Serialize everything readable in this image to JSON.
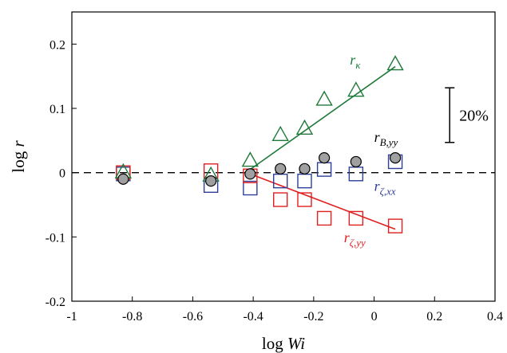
{
  "chart_data": {
    "type": "scatter",
    "xlabel": {
      "prefix": "log ",
      "var": "Wi"
    },
    "ylabel": {
      "prefix": "log ",
      "var": "r"
    },
    "xlim": [
      -1,
      0.4
    ],
    "ylim": [
      -0.2,
      0.25
    ],
    "x_ticks": [
      -1,
      -0.8,
      -0.6,
      -0.4,
      -0.2,
      0,
      0.2,
      0.4
    ],
    "x_tick_labels": [
      "-1",
      "-0.8",
      "-0.6",
      "-0.4",
      "-0.2",
      "0",
      "0.2",
      "0.4"
    ],
    "y_ticks": [
      -0.2,
      -0.1,
      0,
      0.1,
      0.2
    ],
    "y_tick_labels": [
      "-0.2",
      "-0.1",
      "0",
      "0.1",
      "0.2"
    ],
    "grid": false,
    "reference_line": {
      "y": 0,
      "style": "dashed"
    },
    "series": [
      {
        "name": "r_κ",
        "marker": "triangle",
        "color": "#1f7a3a",
        "points": [
          {
            "x": -0.83,
            "y": 0.0
          },
          {
            "x": -0.54,
            "y": -0.005
          },
          {
            "x": -0.41,
            "y": 0.018
          },
          {
            "x": -0.31,
            "y": 0.058
          },
          {
            "x": -0.23,
            "y": 0.068
          },
          {
            "x": -0.165,
            "y": 0.113
          },
          {
            "x": -0.06,
            "y": 0.127
          },
          {
            "x": 0.07,
            "y": 0.168
          }
        ],
        "fit": {
          "x": [
            -0.41,
            0.07
          ],
          "y": [
            0.005,
            0.165
          ]
        }
      },
      {
        "name": "r_B,yy",
        "marker": "circle-filled",
        "color": "#000000",
        "fill": "#a0a0a0",
        "points": [
          {
            "x": -0.83,
            "y": -0.01
          },
          {
            "x": -0.54,
            "y": -0.013
          },
          {
            "x": -0.41,
            "y": -0.002
          },
          {
            "x": -0.31,
            "y": 0.006
          },
          {
            "x": -0.23,
            "y": 0.006
          },
          {
            "x": -0.165,
            "y": 0.023
          },
          {
            "x": -0.06,
            "y": 0.017
          },
          {
            "x": 0.07,
            "y": 0.023
          }
        ]
      },
      {
        "name": "r_ζ,xx",
        "marker": "square",
        "color": "#2e3f9a",
        "points": [
          {
            "x": -0.83,
            "y": -0.002
          },
          {
            "x": -0.54,
            "y": -0.02
          },
          {
            "x": -0.41,
            "y": -0.024
          },
          {
            "x": -0.31,
            "y": -0.013
          },
          {
            "x": -0.23,
            "y": -0.013
          },
          {
            "x": -0.165,
            "y": 0.005
          },
          {
            "x": -0.06,
            "y": -0.002
          },
          {
            "x": 0.07,
            "y": 0.017
          }
        ]
      },
      {
        "name": "r_ζ,yy",
        "marker": "square",
        "color": "#e02020",
        "points": [
          {
            "x": -0.83,
            "y": 0.0
          },
          {
            "x": -0.54,
            "y": 0.003
          },
          {
            "x": -0.41,
            "y": -0.005
          },
          {
            "x": -0.31,
            "y": -0.042
          },
          {
            "x": -0.23,
            "y": -0.042
          },
          {
            "x": -0.165,
            "y": -0.071
          },
          {
            "x": -0.06,
            "y": -0.071
          },
          {
            "x": 0.07,
            "y": -0.083
          }
        ],
        "fit": {
          "x": [
            -0.41,
            0.07
          ],
          "y": [
            -0.002,
            -0.088
          ]
        }
      }
    ],
    "annotations": [
      {
        "id": "kappa",
        "base": "r",
        "sub": "κ",
        "color": "#1f7a3a",
        "x": -0.08,
        "y": 0.168
      },
      {
        "id": "Byy",
        "base": "r",
        "sub": "B,yy",
        "color": "#000000",
        "x": 0.0,
        "y": 0.048
      },
      {
        "id": "zxx",
        "base": "r",
        "sub": "ζ,xx",
        "color": "#2e3f9a",
        "x": 0.0,
        "y": -0.028
      },
      {
        "id": "zyy",
        "base": "r",
        "sub": "ζ,yy",
        "color": "#e02020",
        "x": -0.1,
        "y": -0.108
      }
    ],
    "scale_bar": {
      "label": "20%",
      "x": 0.25,
      "y_from": 0.047,
      "y_to": 0.132
    }
  }
}
